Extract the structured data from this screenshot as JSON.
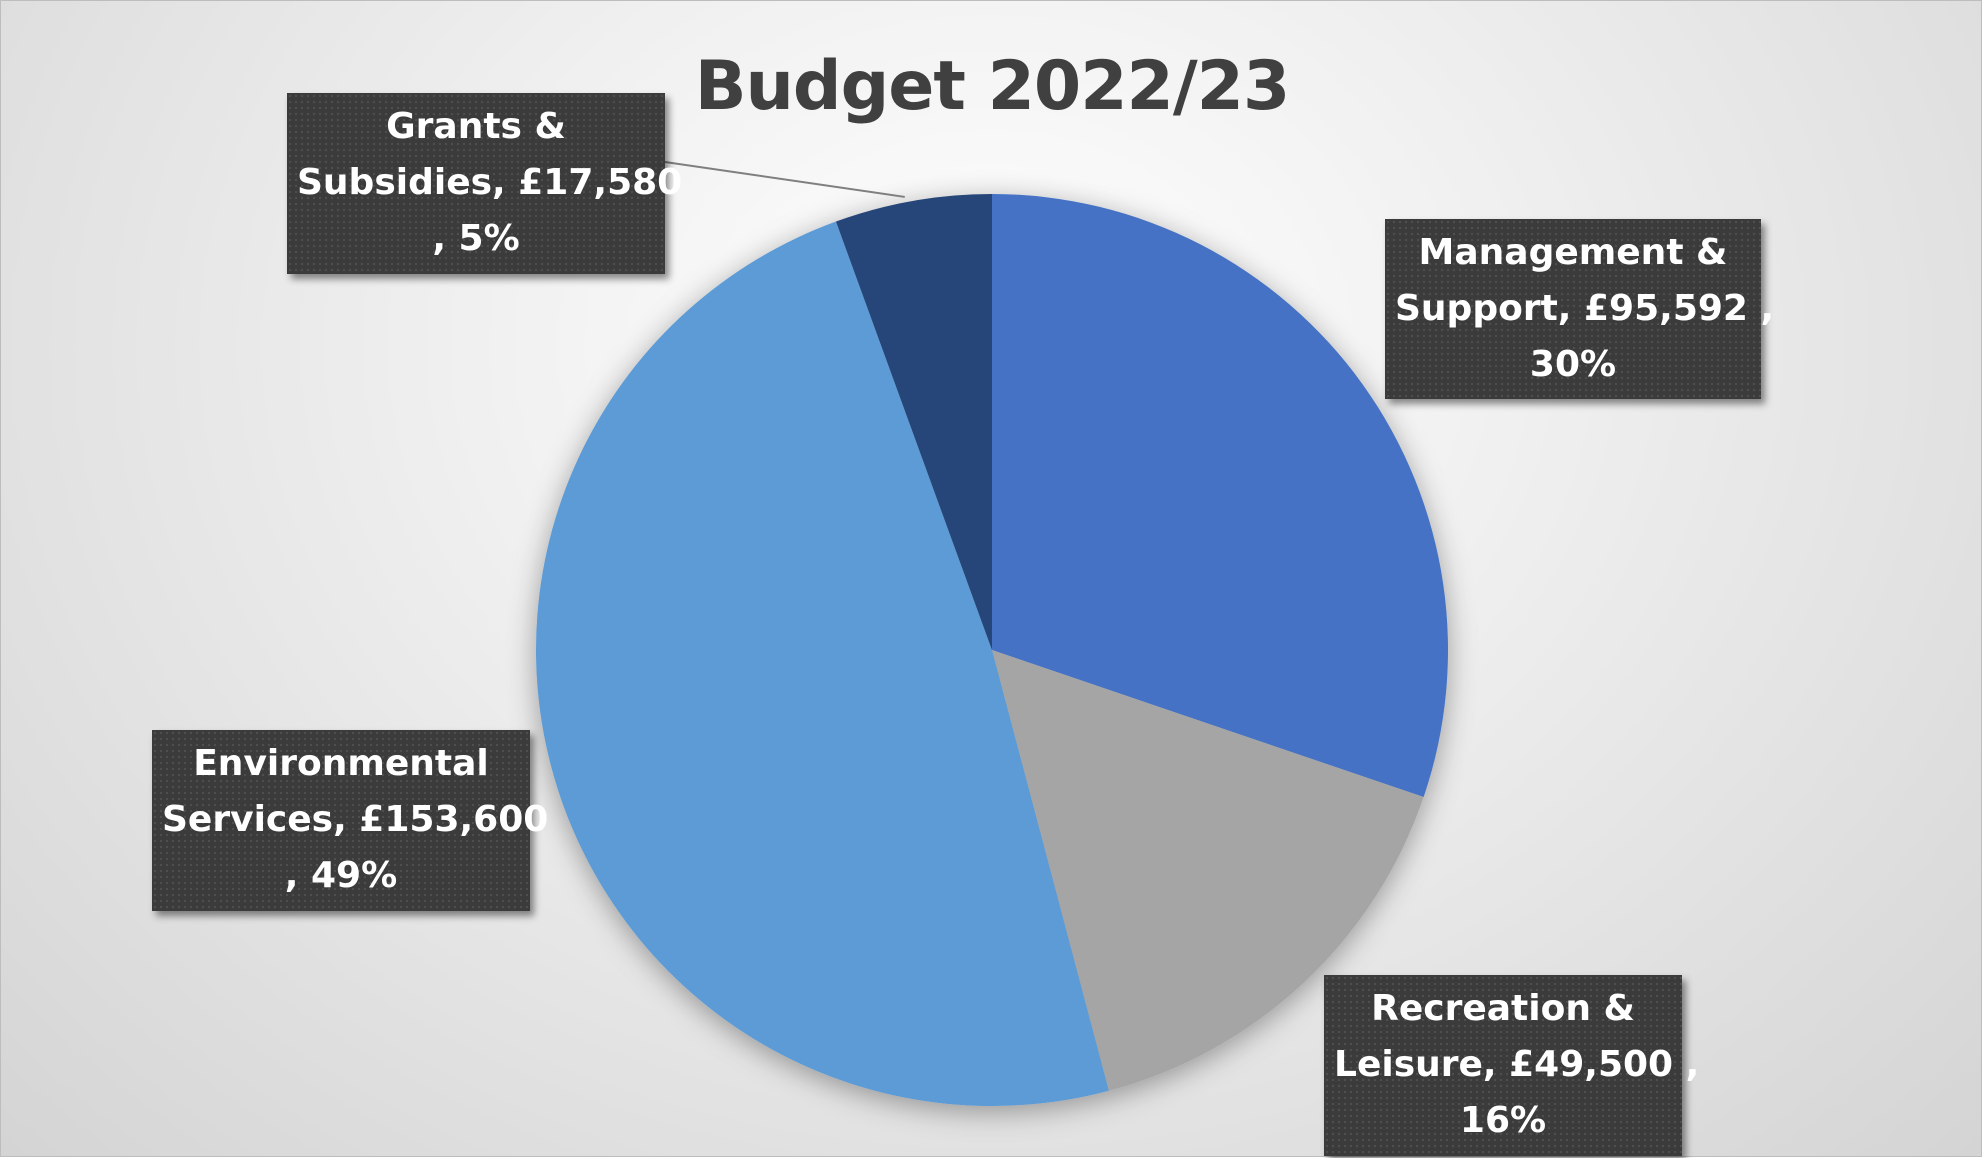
{
  "chart_data": {
    "type": "pie",
    "title": "Budget 2022/23",
    "start_angle_deg": 0,
    "direction": "clockwise",
    "slices": [
      {
        "category": "Management & Support",
        "value": 95592,
        "percent": 30,
        "color": "#4472C4",
        "label_lines": [
          "Management &",
          "Support, £95,592 ,",
          "30%"
        ]
      },
      {
        "category": "Recreation & Leisure",
        "value": 49500,
        "percent": 16,
        "color": "#A5A5A5",
        "label_lines": [
          "Recreation &",
          "Leisure, £49,500 ,",
          "16%"
        ]
      },
      {
        "category": "Environmental Services",
        "value": 153600,
        "percent": 49,
        "color": "#5B9BD5",
        "label_lines": [
          "Environmental",
          "Services, £153,600",
          ", 49%"
        ]
      },
      {
        "category": "Grants & Subsidies",
        "value": 17580,
        "percent": 5,
        "color": "#264478",
        "label_lines": [
          "Grants &",
          "Subsidies, £17,580",
          ", 5%"
        ]
      }
    ],
    "legend": "none",
    "data_labels": "category, value, percentage"
  }
}
